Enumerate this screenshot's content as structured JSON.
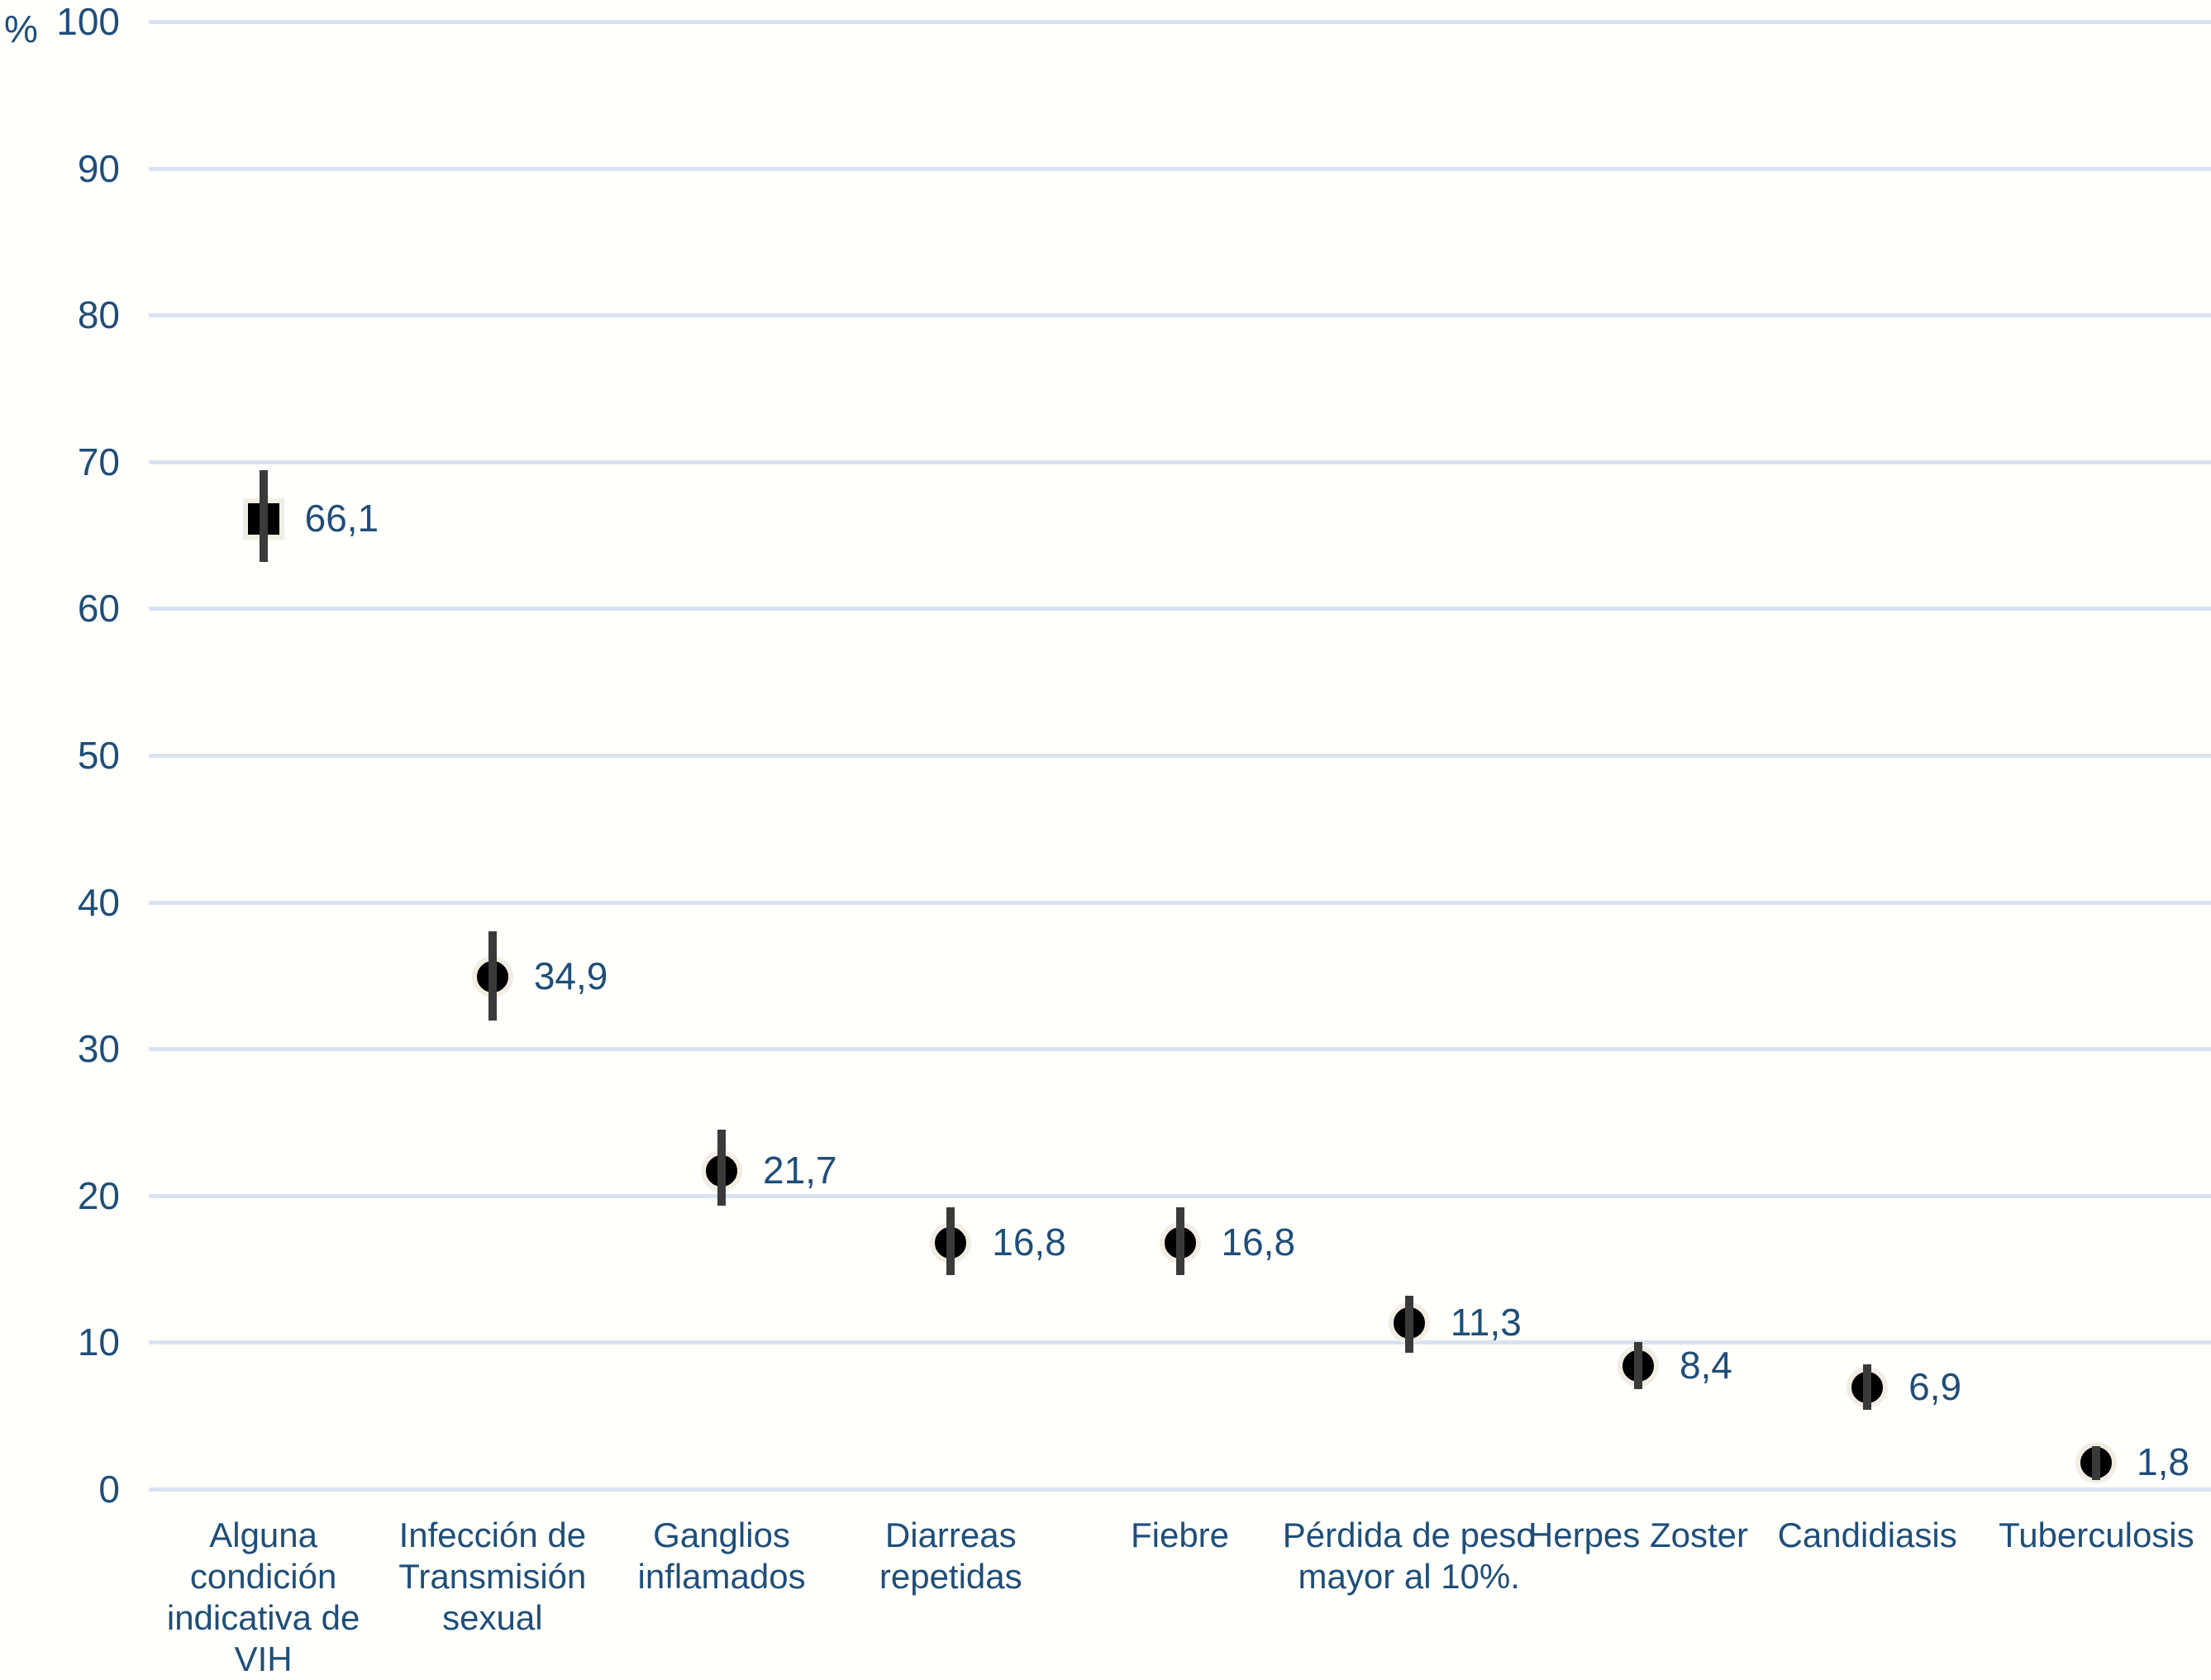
{
  "chart_data": {
    "type": "scatter",
    "title": "",
    "subtitle": "",
    "xlabel": "",
    "ylabel": "%",
    "ylim": [
      0,
      100
    ],
    "ytick_interval": 10,
    "yticks": [
      0,
      10,
      20,
      30,
      40,
      50,
      60,
      70,
      80,
      90,
      100
    ],
    "grid": "horizontal",
    "legend_position": "none",
    "decimal_separator": "comma",
    "error_bars": "vertical, no caps, values estimated from axis",
    "points": [
      {
        "category": "Alguna condición indicativa de VIH",
        "label_lines": [
          "Alguna",
          "condición",
          "indicativa de",
          "VIH"
        ],
        "value": 66.1,
        "value_label": "66,1",
        "error_low": 63.2,
        "error_high": 69.4,
        "marker": "square"
      },
      {
        "category": "Infección de Transmisión sexual",
        "label_lines": [
          "Infección de",
          "Transmisión",
          "sexual"
        ],
        "value": 34.9,
        "value_label": "34,9",
        "error_low": 31.9,
        "error_high": 38.0,
        "marker": "circle"
      },
      {
        "category": "Ganglios inflamados",
        "label_lines": [
          "Ganglios",
          "inflamados"
        ],
        "value": 21.7,
        "value_label": "21,7",
        "error_low": 19.3,
        "error_high": 24.5,
        "marker": "circle"
      },
      {
        "category": "Diarreas repetidas",
        "label_lines": [
          "Diarreas",
          "repetidas"
        ],
        "value": 16.8,
        "value_label": "16,8",
        "error_low": 14.6,
        "error_high": 19.2,
        "marker": "circle"
      },
      {
        "category": "Fiebre",
        "label_lines": [
          "Fiebre"
        ],
        "value": 16.8,
        "value_label": "16,8",
        "error_low": 14.6,
        "error_high": 19.2,
        "marker": "circle"
      },
      {
        "category": "Pérdida de peso mayor al 10%.",
        "label_lines": [
          "Pérdida de peso",
          "mayor al 10%."
        ],
        "value": 11.3,
        "value_label": "11,3",
        "error_low": 9.3,
        "error_high": 13.2,
        "marker": "circle"
      },
      {
        "category": "Herpes Zoster",
        "label_lines": [
          "Herpes Zoster"
        ],
        "value": 8.4,
        "value_label": "8,4",
        "error_low": 6.8,
        "error_high": 10.0,
        "marker": "circle"
      },
      {
        "category": "Candidiasis",
        "label_lines": [
          "Candidiasis"
        ],
        "value": 6.9,
        "value_label": "6,9",
        "error_low": 5.4,
        "error_high": 8.5,
        "marker": "circle"
      },
      {
        "category": "Tuberculosis",
        "label_lines": [
          "Tuberculosis"
        ],
        "value": 1.8,
        "value_label": "1,8",
        "error_low": 0.6,
        "error_high": 2.9,
        "marker": "circle"
      }
    ],
    "colors": {
      "text": "#1f4e79",
      "gridline": "#d9e2f0",
      "marker_fill": "#000000",
      "marker_outline": "#f0ede3",
      "error_bar": "#3a3a3a",
      "background": "#fffffc"
    }
  }
}
